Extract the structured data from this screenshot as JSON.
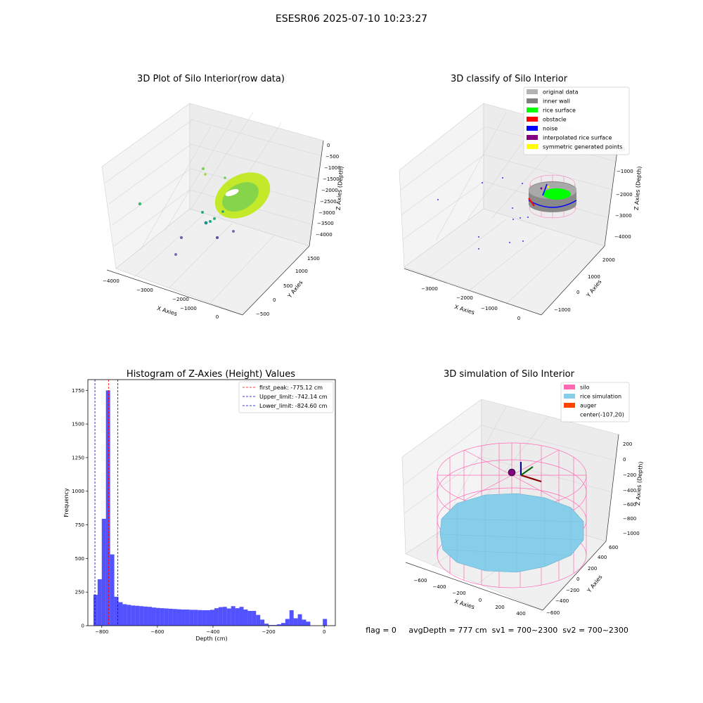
{
  "figure": {
    "suptitle": "ESESR06 2025-07-10 10:23:27",
    "status_line": "flag = 0     avgDepth = 777 cm  sv1 = 700~2300  sv2 = 700~2300"
  },
  "colors": {
    "gridline": "#cccccc",
    "pane": "#f2f2f2",
    "histogram_bar": "#0000ff",
    "first_peak_line": "#ff0000",
    "limit_line": "#0000cc",
    "silo_wire": "#ff69b4",
    "rice_surface": "#87ceeb",
    "auger": "#ff4500",
    "center_marker": "#800080"
  },
  "chart_data": [
    {
      "type": "scatter",
      "subtype": "3d",
      "title": "3D Plot of Silo Interior(row data)",
      "xlabel": "X Axies",
      "ylabel": "Y Axies",
      "zlabel": "Z Axies (Depth)",
      "x_ticks": [
        "−4000",
        "−3000",
        "−2000",
        "−1000",
        "0"
      ],
      "y_ticks": [
        "−500",
        "0",
        "500",
        "1000",
        "1500"
      ],
      "z_ticks": [
        "0",
        "−500",
        "−1000",
        "−1500",
        "−2000",
        "−2500",
        "−3000",
        "−3500",
        "−4000"
      ],
      "colormap": "viridis",
      "grid": true
    },
    {
      "type": "scatter",
      "subtype": "3d",
      "title": "3D classify of Silo Interior",
      "xlabel": "X Axies",
      "ylabel": "Y Axies",
      "zlabel": "Z Axies (Depth)",
      "x_ticks": [
        "−3000",
        "−2000",
        "−1000",
        "0"
      ],
      "y_ticks": [
        "−1000",
        "0",
        "1000",
        "2000"
      ],
      "z_ticks": [
        "0",
        "−1000",
        "−2000",
        "−3000",
        "−4000"
      ],
      "legend_position": "top-right",
      "legend": [
        {
          "label": "original data",
          "color": "#b3b3b3"
        },
        {
          "label": "inner wall",
          "color": "#808080"
        },
        {
          "label": "rice surface",
          "color": "#00ff00"
        },
        {
          "label": "obstacle",
          "color": "#ff0000"
        },
        {
          "label": "noise",
          "color": "#0000ff"
        },
        {
          "label": "interpolated rice surface",
          "color": "#800080"
        },
        {
          "label": "symmetric generated points",
          "color": "#ffff00"
        }
      ],
      "grid": true
    },
    {
      "type": "bar",
      "subtype": "histogram",
      "title": "Histogram of Z-Axies (Height) Values",
      "xlabel": "Depth (cm)",
      "ylabel": "Frequency",
      "xlim": [
        -850,
        40
      ],
      "ylim": [
        0,
        1830
      ],
      "x_ticks": [
        -800,
        -600,
        -400,
        -200,
        0
      ],
      "y_ticks": [
        0,
        250,
        500,
        750,
        1000,
        1250,
        1500,
        1750
      ],
      "x_tick_labels": [
        "−800",
        "−600",
        "−400",
        "−200",
        "0"
      ],
      "y_tick_labels": [
        "0",
        "250",
        "500",
        "750",
        "1000",
        "1250",
        "1500",
        "1750"
      ],
      "bin_width": 15,
      "bins": [
        [
          -830,
          230
        ],
        [
          -815,
          345
        ],
        [
          -800,
          795
        ],
        [
          -785,
          1750
        ],
        [
          -770,
          530
        ],
        [
          -755,
          215
        ],
        [
          -740,
          175
        ],
        [
          -725,
          160
        ],
        [
          -710,
          155
        ],
        [
          -695,
          150
        ],
        [
          -680,
          148
        ],
        [
          -665,
          145
        ],
        [
          -650,
          142
        ],
        [
          -635,
          140
        ],
        [
          -620,
          135
        ],
        [
          -605,
          132
        ],
        [
          -590,
          130
        ],
        [
          -575,
          128
        ],
        [
          -560,
          126
        ],
        [
          -545,
          124
        ],
        [
          -530,
          122
        ],
        [
          -515,
          120
        ],
        [
          -500,
          120
        ],
        [
          -485,
          118
        ],
        [
          -470,
          118
        ],
        [
          -455,
          116
        ],
        [
          -440,
          115
        ],
        [
          -425,
          115
        ],
        [
          -410,
          118
        ],
        [
          -395,
          130
        ],
        [
          -380,
          138
        ],
        [
          -365,
          140
        ],
        [
          -350,
          128
        ],
        [
          -335,
          145
        ],
        [
          -320,
          130
        ],
        [
          -305,
          140
        ],
        [
          -290,
          120
        ],
        [
          -275,
          110
        ],
        [
          -260,
          110
        ],
        [
          -245,
          80
        ],
        [
          -230,
          45
        ],
        [
          -215,
          15
        ],
        [
          -200,
          5
        ],
        [
          -185,
          5
        ],
        [
          -170,
          10
        ],
        [
          -155,
          20
        ],
        [
          -140,
          50
        ],
        [
          -125,
          115
        ],
        [
          -110,
          55
        ],
        [
          -95,
          85
        ],
        [
          -80,
          45
        ],
        [
          -65,
          30
        ],
        [
          -50,
          0
        ],
        [
          -35,
          0
        ],
        [
          -20,
          0
        ],
        [
          -5,
          50
        ]
      ],
      "vlines": [
        {
          "label": "first_peak: -775.12 cm",
          "x": -775.12,
          "color": "#ff0000"
        },
        {
          "label": "Upper_limit: -742.14 cm",
          "x": -742.14,
          "color": "#0000cc"
        },
        {
          "label": "Lower_limit: -824.60 cm",
          "x": -824.6,
          "color": "#0000cc"
        }
      ],
      "legend_position": "top-right",
      "grid": false
    },
    {
      "type": "surface",
      "subtype": "3d",
      "title": "3D simulation of Silo Interior",
      "xlabel": "X Axies",
      "ylabel": "Y Axies",
      "zlabel": "Z Axies (Depth)",
      "x_ticks": [
        "−600",
        "−400",
        "−200",
        "0",
        "200",
        "400"
      ],
      "y_ticks": [
        "−600",
        "−400",
        "−200",
        "0",
        "200",
        "400",
        "600"
      ],
      "z_ticks": [
        "200",
        "0",
        "−200",
        "−400",
        "−600",
        "−800",
        "−1000"
      ],
      "legend_position": "top-right",
      "legend": [
        {
          "label": "silo",
          "color": "#ff69b4"
        },
        {
          "label": "rice simulation",
          "color": "#87ceeb"
        },
        {
          "label": "auger",
          "color": "#ff4500"
        },
        {
          "label": "center(-107,20)",
          "color": ""
        }
      ],
      "grid": true
    }
  ]
}
